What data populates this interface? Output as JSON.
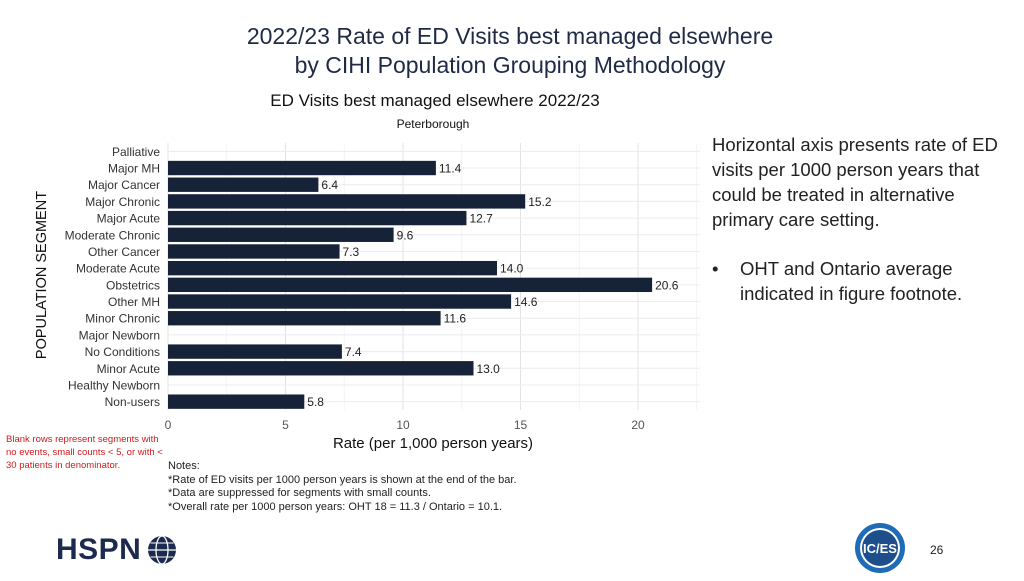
{
  "slide": {
    "title_line1": "2022/23 Rate of ED Visits best managed elsewhere",
    "title_line2": "by CIHI Population Grouping Methodology",
    "side_paragraph": "Horizontal axis presents rate of ED visits per 1000 person years that could be treated in alternative primary care setting.",
    "side_bullet_symbol": "•",
    "side_bullet": "OHT and Ontario average indicated in figure footnote.",
    "blank_rows_note": "Blank rows represent segments with no events, small counts < 5, or with < 30 patients in denominator.",
    "notes": [
      "Notes:",
      "*Rate of ED visits per 1000 person years is shown at the end of the bar.",
      "*Data are suppressed for segments with small counts.",
      "*Overall rate per 1000 person years: OHT 18 = 11.3 / Ontario = 10.1."
    ],
    "logo_text": "HSPN",
    "ices_logo_text": "IC/ES",
    "page_number": "26"
  },
  "colors": {
    "bar": "#162238",
    "title": "#1f2a44",
    "note_red": "#d11a1a",
    "ices_blue": "#1e6bb8"
  },
  "chart_data": {
    "type": "bar",
    "orientation": "horizontal",
    "title": "ED Visits best managed elsewhere 2022/23",
    "subtitle": "Peterborough",
    "xlabel": "Rate (per 1,000 person years)",
    "ylabel": "POPULATION SEGMENT",
    "xlim": [
      0,
      22.5
    ],
    "xticks": [
      0,
      5,
      10,
      15,
      20
    ],
    "grid": true,
    "categories": [
      "Palliative",
      "Major MH",
      "Major Cancer",
      "Major Chronic",
      "Major Acute",
      "Moderate Chronic",
      "Other Cancer",
      "Moderate Acute",
      "Obstetrics",
      "Other MH",
      "Minor Chronic",
      "Major Newborn",
      "No Conditions",
      "Minor Acute",
      "Healthy Newborn",
      "Non-users"
    ],
    "values": [
      null,
      11.4,
      6.4,
      15.2,
      12.7,
      9.6,
      7.3,
      14.0,
      20.6,
      14.6,
      11.6,
      null,
      7.4,
      13.0,
      null,
      5.8
    ],
    "value_labels": [
      "",
      "11.4",
      "6.4",
      "15.2",
      "12.7",
      "9.6",
      "7.3",
      "14.0",
      "20.6",
      "14.6",
      "11.6",
      "",
      "7.4",
      "13.0",
      "",
      "5.8"
    ]
  }
}
